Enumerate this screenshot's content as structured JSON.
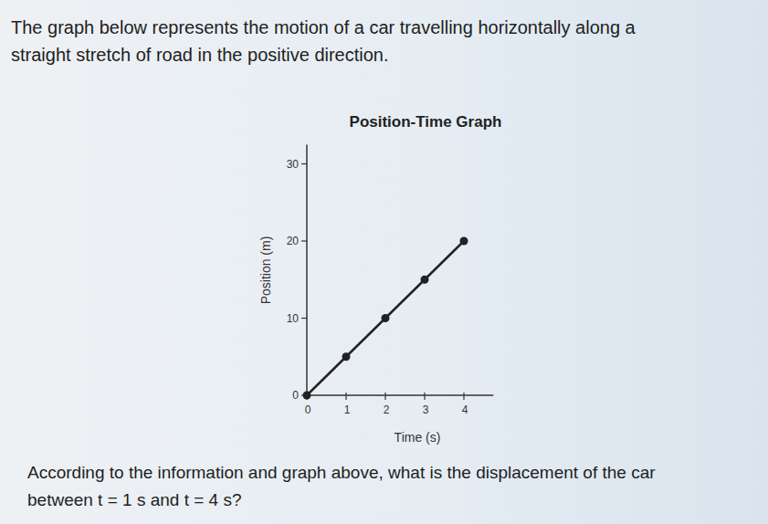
{
  "question": {
    "intro": [
      "The graph below represents the motion of a car travelling horizontally along a",
      "straight stretch of road in the positive direction."
    ],
    "prompt": [
      "According to the information and graph above, what is the displacement of the car",
      "between t = 1 s and t = 4 s?"
    ]
  },
  "chart_data": {
    "type": "line",
    "title": "Position-Time Graph",
    "x_label": "Time (s)",
    "y_label": "Position (m)",
    "x": [
      0,
      1,
      2,
      3,
      4
    ],
    "values": [
      0,
      5,
      10,
      15,
      20
    ],
    "xlim": [
      0,
      4.75
    ],
    "ylim": [
      0,
      32.5
    ],
    "xticks": [
      0,
      1,
      2,
      3,
      4
    ],
    "yticks": [
      0,
      10,
      20,
      30
    ],
    "color": "#222222",
    "marker": "circle",
    "grid": false
  }
}
